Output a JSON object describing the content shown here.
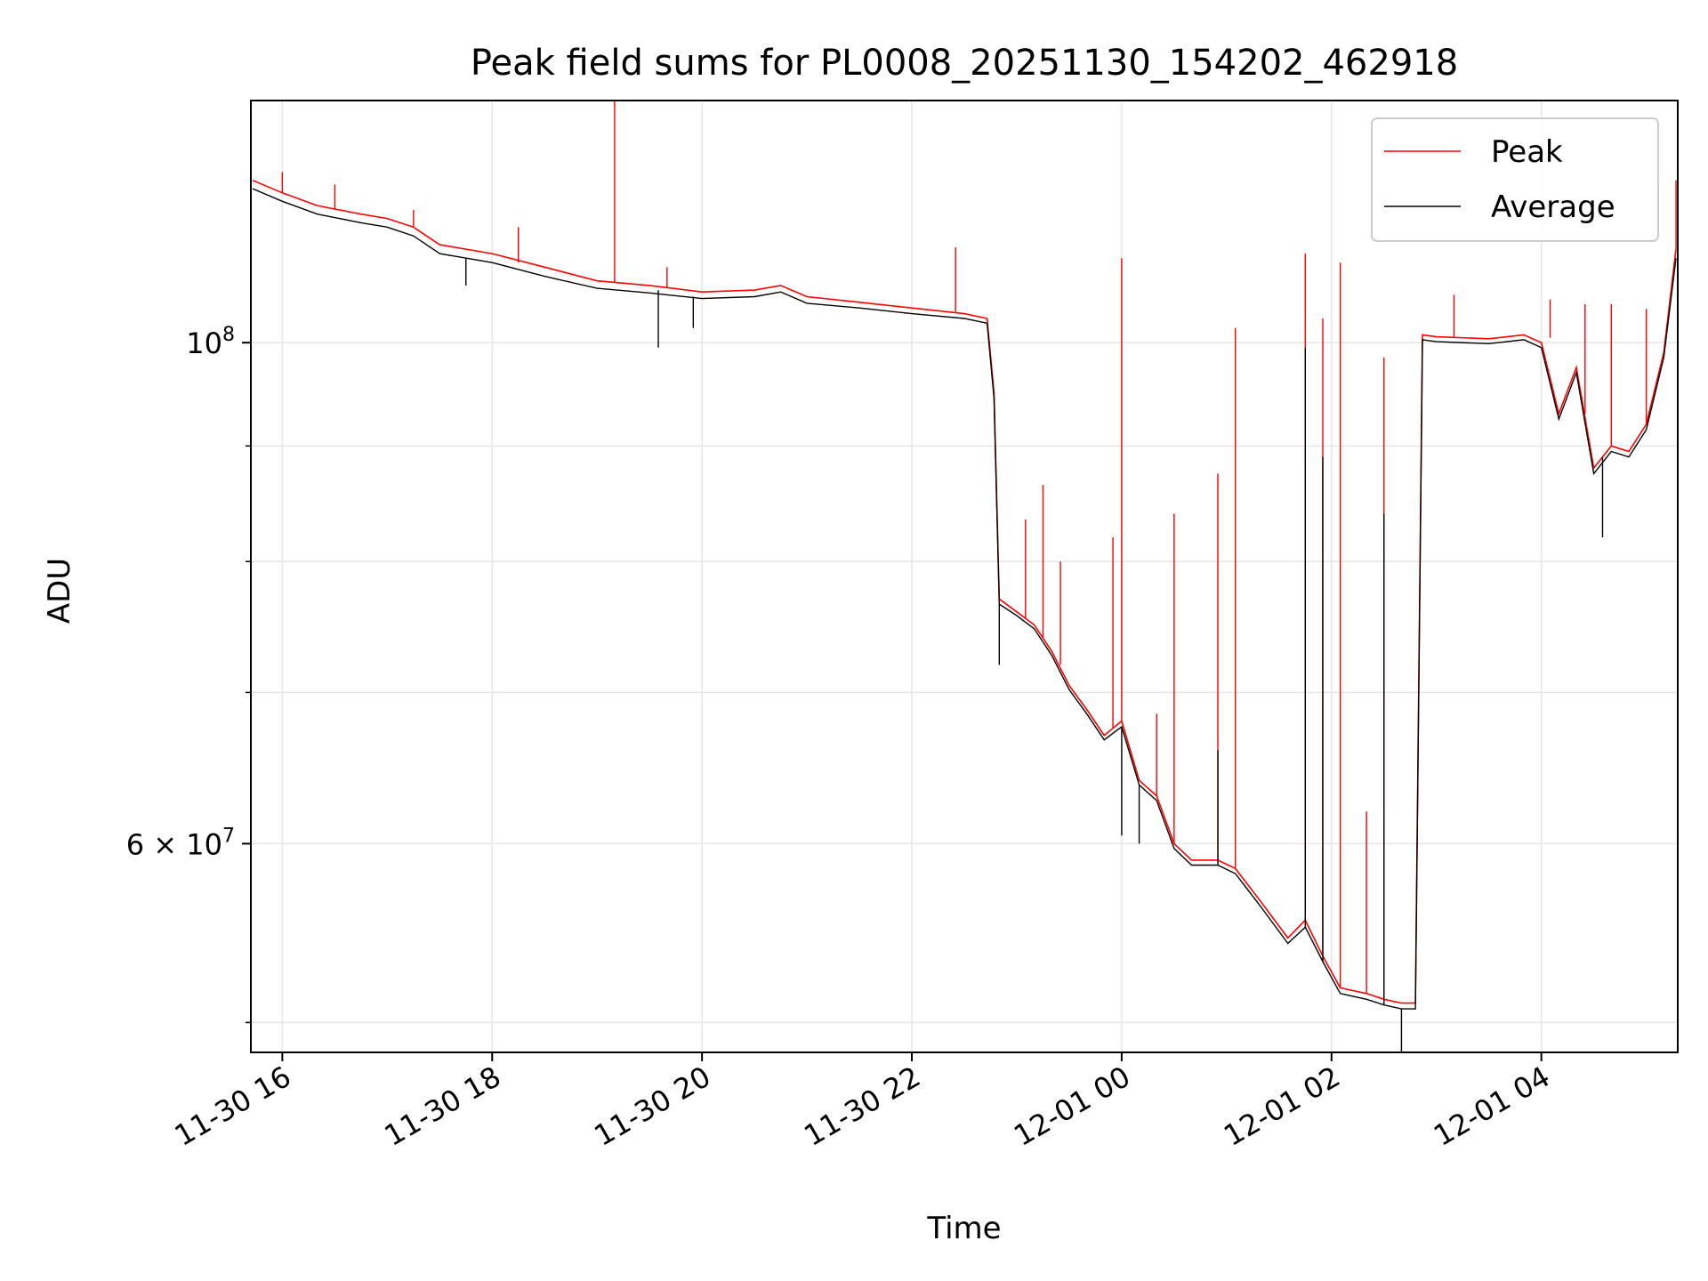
{
  "chart_data": {
    "type": "line",
    "title": "Peak field sums for PL0008_20251130_154202_462918",
    "xlabel": "Time",
    "ylabel": "ADU",
    "y_scale": "log",
    "x_range": [
      "2025-11-30 15:42",
      "2025-12-01 05:18"
    ],
    "ylim": [
      48500000,
      128000000
    ],
    "x_ticks": [
      {
        "time": "2025-11-30 16:00",
        "label": "11-30 16"
      },
      {
        "time": "2025-11-30 18:00",
        "label": "11-30 18"
      },
      {
        "time": "2025-11-30 20:00",
        "label": "11-30 20"
      },
      {
        "time": "2025-11-30 22:00",
        "label": "11-30 22"
      },
      {
        "time": "2025-12-01 00:00",
        "label": "12-01 00"
      },
      {
        "time": "2025-12-01 02:00",
        "label": "12-01 02"
      },
      {
        "time": "2025-12-01 04:00",
        "label": "12-01 04"
      }
    ],
    "y_major_ticks": [
      {
        "value": 60000000,
        "mantissa": "6",
        "exponent": "7"
      },
      {
        "value": 100000000,
        "mantissa": "",
        "exponent": "8"
      }
    ],
    "y_minor_ticks": [
      50000000,
      70000000,
      80000000,
      90000000
    ],
    "grid": true,
    "legend_position": "top-right",
    "series": [
      {
        "name": "Peak",
        "color": "#ff0000",
        "points": [
          [
            "2025-11-30 15:43",
            118000000
          ],
          [
            "2025-11-30 16:00",
            116500000
          ],
          [
            "2025-11-30 16:20",
            115000000
          ],
          [
            "2025-11-30 16:45",
            114000000
          ],
          [
            "2025-11-30 17:00",
            113500000
          ],
          [
            "2025-11-30 17:15",
            112500000
          ],
          [
            "2025-11-30 17:30",
            110500000
          ],
          [
            "2025-11-30 18:00",
            109500000
          ],
          [
            "2025-11-30 18:30",
            108000000
          ],
          [
            "2025-11-30 19:00",
            106500000
          ],
          [
            "2025-11-30 19:30",
            106000000
          ],
          [
            "2025-11-30 20:00",
            105300000
          ],
          [
            "2025-11-30 20:30",
            105500000
          ],
          [
            "2025-11-30 20:45",
            106000000
          ],
          [
            "2025-11-30 21:00",
            104800000
          ],
          [
            "2025-11-30 21:30",
            104200000
          ],
          [
            "2025-11-30 22:00",
            103600000
          ],
          [
            "2025-11-30 22:30",
            103000000
          ],
          [
            "2025-11-30 22:43",
            102500000
          ],
          [
            "2025-11-30 22:47",
            95000000
          ],
          [
            "2025-11-30 22:50",
            77000000
          ],
          [
            "2025-11-30 23:00",
            76000000
          ],
          [
            "2025-11-30 23:10",
            75000000
          ],
          [
            "2025-11-30 23:20",
            73000000
          ],
          [
            "2025-11-30 23:30",
            70500000
          ],
          [
            "2025-11-30 23:40",
            68800000
          ],
          [
            "2025-11-30 23:50",
            67000000
          ],
          [
            "2025-12-01 00:00",
            68000000
          ],
          [
            "2025-12-01 00:10",
            64000000
          ],
          [
            "2025-12-01 00:20",
            63000000
          ],
          [
            "2025-12-01 00:30",
            60000000
          ],
          [
            "2025-12-01 00:40",
            59000000
          ],
          [
            "2025-12-01 00:55",
            59000000
          ],
          [
            "2025-12-01 01:05",
            58500000
          ],
          [
            "2025-12-01 01:20",
            56500000
          ],
          [
            "2025-12-01 01:35",
            54500000
          ],
          [
            "2025-12-01 01:45",
            55500000
          ],
          [
            "2025-12-01 01:55",
            53500000
          ],
          [
            "2025-12-01 02:05",
            51800000
          ],
          [
            "2025-12-01 02:20",
            51500000
          ],
          [
            "2025-12-01 02:30",
            51200000
          ],
          [
            "2025-12-01 02:40",
            51000000
          ],
          [
            "2025-12-01 02:48",
            51000000
          ],
          [
            "2025-12-01 02:52",
            100800000
          ],
          [
            "2025-12-01 03:00",
            100600000
          ],
          [
            "2025-12-01 03:30",
            100400000
          ],
          [
            "2025-12-01 03:50",
            100800000
          ],
          [
            "2025-12-01 04:00",
            100000000
          ],
          [
            "2025-12-01 04:10",
            93000000
          ],
          [
            "2025-12-01 04:20",
            97500000
          ],
          [
            "2025-12-01 04:30",
            88000000
          ],
          [
            "2025-12-01 04:40",
            90000000
          ],
          [
            "2025-12-01 04:50",
            89500000
          ],
          [
            "2025-12-01 05:00",
            92000000
          ],
          [
            "2025-12-01 05:10",
            99000000
          ],
          [
            "2025-12-01 05:17",
            110000000
          ]
        ],
        "spikes": [
          [
            "2025-11-30 16:00",
            116500000,
            119000000
          ],
          [
            "2025-11-30 16:30",
            114500000,
            117500000
          ],
          [
            "2025-11-30 17:15",
            112500000,
            114500000
          ],
          [
            "2025-11-30 18:15",
            108500000,
            112500000
          ],
          [
            "2025-11-30 19:10",
            106300000,
            128000000
          ],
          [
            "2025-11-30 19:40",
            105800000,
            108000000
          ],
          [
            "2025-11-30 22:25",
            103200000,
            110200000
          ],
          [
            "2025-11-30 23:05",
            75500000,
            83500000
          ],
          [
            "2025-11-30 23:15",
            74000000,
            86500000
          ],
          [
            "2025-11-30 23:25",
            72000000,
            80000000
          ],
          [
            "2025-11-30 23:55",
            67500000,
            82000000
          ],
          [
            "2025-12-01 00:00",
            68000000,
            109000000
          ],
          [
            "2025-12-01 00:20",
            63000000,
            68500000
          ],
          [
            "2025-12-01 00:30",
            60000000,
            84000000
          ],
          [
            "2025-12-01 00:55",
            59000000,
            87500000
          ],
          [
            "2025-12-01 01:05",
            58500000,
            101500000
          ],
          [
            "2025-12-01 01:45",
            55500000,
            109500000
          ],
          [
            "2025-12-01 01:55",
            53500000,
            102500000
          ],
          [
            "2025-12-01 02:05",
            51800000,
            108500000
          ],
          [
            "2025-12-01 02:20",
            51500000,
            62000000
          ],
          [
            "2025-12-01 02:30",
            51200000,
            98500000
          ],
          [
            "2025-12-01 03:10",
            100500000,
            105000000
          ],
          [
            "2025-12-01 04:05",
            100500000,
            104500000
          ],
          [
            "2025-12-01 04:25",
            93000000,
            104000000
          ],
          [
            "2025-12-01 04:40",
            90000000,
            104000000
          ],
          [
            "2025-12-01 05:00",
            92000000,
            103500000
          ],
          [
            "2025-12-01 05:17",
            110000000,
            118000000
          ]
        ]
      },
      {
        "name": "Average",
        "color": "#000000",
        "points": [
          [
            "2025-11-30 15:43",
            117000000
          ],
          [
            "2025-11-30 16:00",
            115500000
          ],
          [
            "2025-11-30 16:20",
            114000000
          ],
          [
            "2025-11-30 16:45",
            113000000
          ],
          [
            "2025-11-30 17:00",
            112500000
          ],
          [
            "2025-11-30 17:15",
            111500000
          ],
          [
            "2025-11-30 17:30",
            109500000
          ],
          [
            "2025-11-30 18:00",
            108500000
          ],
          [
            "2025-11-30 18:30",
            107000000
          ],
          [
            "2025-11-30 19:00",
            105700000
          ],
          [
            "2025-11-30 19:30",
            105200000
          ],
          [
            "2025-11-30 20:00",
            104600000
          ],
          [
            "2025-11-30 20:30",
            104800000
          ],
          [
            "2025-11-30 20:45",
            105300000
          ],
          [
            "2025-11-30 21:00",
            104100000
          ],
          [
            "2025-11-30 21:30",
            103600000
          ],
          [
            "2025-11-30 22:00",
            103000000
          ],
          [
            "2025-11-30 22:30",
            102500000
          ],
          [
            "2025-11-30 22:43",
            102000000
          ],
          [
            "2025-11-30 22:47",
            94500000
          ],
          [
            "2025-11-30 22:50",
            76600000
          ],
          [
            "2025-11-30 23:00",
            75700000
          ],
          [
            "2025-11-30 23:10",
            74700000
          ],
          [
            "2025-11-30 23:20",
            72700000
          ],
          [
            "2025-11-30 23:30",
            70200000
          ],
          [
            "2025-11-30 23:40",
            68500000
          ],
          [
            "2025-11-30 23:50",
            66700000
          ],
          [
            "2025-12-01 00:00",
            67600000
          ],
          [
            "2025-12-01 00:10",
            63700000
          ],
          [
            "2025-12-01 00:20",
            62700000
          ],
          [
            "2025-12-01 00:30",
            59700000
          ],
          [
            "2025-12-01 00:40",
            58700000
          ],
          [
            "2025-12-01 00:55",
            58700000
          ],
          [
            "2025-12-01 01:05",
            58200000
          ],
          [
            "2025-12-01 01:20",
            56200000
          ],
          [
            "2025-12-01 01:35",
            54200000
          ],
          [
            "2025-12-01 01:45",
            55100000
          ],
          [
            "2025-12-01 01:55",
            53200000
          ],
          [
            "2025-12-01 02:05",
            51500000
          ],
          [
            "2025-12-01 02:20",
            51200000
          ],
          [
            "2025-12-01 02:30",
            50900000
          ],
          [
            "2025-12-01 02:40",
            50700000
          ],
          [
            "2025-12-01 02:48",
            50700000
          ],
          [
            "2025-12-01 02:52",
            100300000
          ],
          [
            "2025-12-01 03:00",
            100100000
          ],
          [
            "2025-12-01 03:30",
            99900000
          ],
          [
            "2025-12-01 03:50",
            100300000
          ],
          [
            "2025-12-01 04:00",
            99500000
          ],
          [
            "2025-12-01 04:10",
            92500000
          ],
          [
            "2025-12-01 04:20",
            97000000
          ],
          [
            "2025-12-01 04:30",
            87500000
          ],
          [
            "2025-12-01 04:40",
            89500000
          ],
          [
            "2025-12-01 04:50",
            89000000
          ],
          [
            "2025-12-01 05:00",
            91500000
          ],
          [
            "2025-12-01 05:10",
            98500000
          ],
          [
            "2025-12-01 05:17",
            109000000
          ]
        ],
        "spikes": [
          [
            "2025-11-30 17:45",
            109000000,
            106000000
          ],
          [
            "2025-11-30 19:35",
            105500000,
            99500000
          ],
          [
            "2025-11-30 19:55",
            104800000,
            101500000
          ],
          [
            "2025-11-30 22:50",
            76600000,
            72000000
          ],
          [
            "2025-12-01 00:00",
            67600000,
            60500000
          ],
          [
            "2025-12-01 00:10",
            63700000,
            60000000
          ],
          [
            "2025-12-01 00:55",
            58700000,
            66000000
          ],
          [
            "2025-12-01 01:45",
            55100000,
            99500000
          ],
          [
            "2025-12-01 01:55",
            53200000,
            89000000
          ],
          [
            "2025-12-01 02:30",
            50900000,
            84000000
          ],
          [
            "2025-12-01 02:40",
            50700000,
            48500000
          ],
          [
            "2025-12-01 04:35",
            89000000,
            82000000
          ]
        ]
      }
    ]
  }
}
